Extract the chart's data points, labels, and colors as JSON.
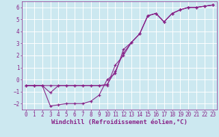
{
  "background_color": "#cce8f0",
  "grid_color": "#ffffff",
  "line_color": "#882288",
  "marker": "+",
  "xlabel": "Windchill (Refroidissement éolien,°C)",
  "xlabel_fontsize": 6.5,
  "ylim": [
    -2.5,
    6.5
  ],
  "xlim": [
    -0.5,
    23.5
  ],
  "yticks": [
    -2,
    -1,
    0,
    1,
    2,
    3,
    4,
    5,
    6
  ],
  "xticks": [
    0,
    1,
    2,
    3,
    4,
    5,
    6,
    7,
    8,
    9,
    10,
    11,
    12,
    13,
    14,
    15,
    16,
    17,
    18,
    19,
    20,
    21,
    22,
    23
  ],
  "tick_fontsize": 5.5,
  "series": [
    {
      "x": [
        0,
        1,
        2,
        3,
        4,
        5,
        6,
        7,
        8,
        9,
        10,
        11,
        12,
        13,
        14,
        15,
        16,
        17,
        18,
        19,
        20,
        21,
        22,
        23
      ],
      "y": [
        -0.5,
        -0.5,
        -0.5,
        -0.5,
        -0.5,
        -0.5,
        -0.5,
        -0.5,
        -0.5,
        -0.5,
        -0.5,
        1.2,
        2.0,
        3.1,
        3.8,
        5.3,
        5.5,
        4.8,
        5.5,
        5.8,
        6.0,
        6.0,
        6.1,
        6.2
      ]
    },
    {
      "x": [
        0,
        1,
        2,
        3,
        4,
        5,
        6,
        7,
        8,
        9,
        10,
        11,
        12,
        13,
        14,
        15,
        16,
        17,
        18,
        19,
        20,
        21,
        22,
        23
      ],
      "y": [
        -0.5,
        -0.5,
        -0.5,
        -1.1,
        -0.5,
        -0.5,
        -0.5,
        -0.5,
        -0.5,
        -0.5,
        -0.4,
        0.7,
        2.2,
        3.1,
        3.8,
        5.3,
        5.5,
        4.8,
        5.5,
        5.8,
        6.0,
        6.0,
        6.1,
        6.2
      ]
    },
    {
      "x": [
        0,
        1,
        2,
        3,
        4,
        5,
        6,
        7,
        8,
        9,
        10,
        11,
        12,
        13,
        14,
        15,
        16,
        17,
        18,
        19,
        20,
        21,
        22,
        23
      ],
      "y": [
        -0.5,
        -0.5,
        -0.5,
        -2.2,
        -2.1,
        -2.0,
        -2.0,
        -2.0,
        -1.8,
        -1.3,
        0.0,
        0.5,
        2.5,
        3.1,
        3.8,
        5.3,
        5.5,
        4.8,
        5.5,
        5.8,
        6.0,
        6.0,
        6.1,
        6.2
      ]
    }
  ]
}
